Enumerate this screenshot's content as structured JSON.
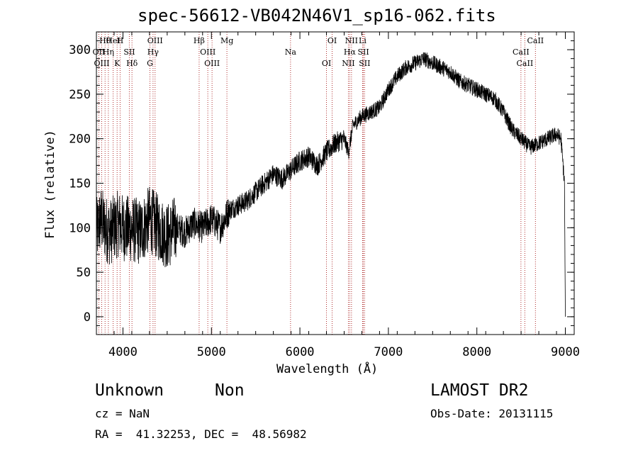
{
  "chart_data": {
    "type": "line",
    "title": "spec-56612-VB042N46V1_sp16-062.fits",
    "xlabel": "Wavelength (Å)",
    "ylabel": "Flux (relative)",
    "xlim": [
      3700,
      9100
    ],
    "ylim": [
      -20,
      320
    ],
    "x_ticks": [
      4000,
      5000,
      6000,
      7000,
      8000,
      9000
    ],
    "y_ticks": [
      0,
      50,
      100,
      150,
      200,
      250,
      300
    ],
    "grid": false,
    "series": [
      {
        "x": [
          3700,
          3750,
          3800,
          3850,
          3900,
          3950,
          4000,
          4100,
          4200,
          4300,
          4400,
          4500,
          4600,
          4700,
          4800,
          4900,
          5000,
          5100,
          5200,
          5300,
          5400,
          5500,
          5600,
          5700,
          5800,
          5900,
          6000,
          6100,
          6200,
          6300,
          6400,
          6500,
          6550,
          6600,
          6700,
          6800,
          6900,
          7000,
          7100,
          7200,
          7300,
          7400,
          7500,
          7600,
          7700,
          7800,
          7900,
          8000,
          8100,
          8200,
          8300,
          8400,
          8500,
          8600,
          8700,
          8800,
          8900,
          8950,
          8990,
          9000
        ],
        "y": [
          95,
          110,
          100,
          95,
          100,
          105,
          100,
          98,
          95,
          110,
          100,
          90,
          100,
          95,
          105,
          100,
          110,
          100,
          120,
          125,
          130,
          140,
          150,
          160,
          155,
          165,
          175,
          180,
          170,
          185,
          195,
          200,
          185,
          215,
          225,
          230,
          235,
          255,
          270,
          280,
          285,
          290,
          285,
          280,
          275,
          265,
          260,
          255,
          250,
          245,
          230,
          210,
          200,
          190,
          195,
          200,
          205,
          200,
          150,
          0
        ]
      }
    ],
    "lines": [
      {
        "label": "Hθ",
        "x": 3798
      },
      {
        "label": "OII",
        "x": 3727
      },
      {
        "label": "OIII",
        "x": 3760
      },
      {
        "label": "HeI",
        "x": 3889
      },
      {
        "label": "Hη",
        "x": 3835
      },
      {
        "label": "K",
        "x": 3934
      },
      {
        "label": "H",
        "x": 3968
      },
      {
        "label": "SII",
        "x": 4072
      },
      {
        "label": "Hδ",
        "x": 4102
      },
      {
        "label": "OIII",
        "x": 4363
      },
      {
        "label": "Hγ",
        "x": 4340
      },
      {
        "label": "G",
        "x": 4305
      },
      {
        "label": "Hβ",
        "x": 4861
      },
      {
        "label": "OIII",
        "x": 4959
      },
      {
        "label": "OIII",
        "x": 5007
      },
      {
        "label": "Mg",
        "x": 5175
      },
      {
        "label": "Na",
        "x": 5894
      },
      {
        "label": "OI",
        "x": 6300
      },
      {
        "label": "OI",
        "x": 6364
      },
      {
        "label": "Hα",
        "x": 6563
      },
      {
        "label": "NII",
        "x": 6548
      },
      {
        "label": "NII",
        "x": 6583
      },
      {
        "label": "SII",
        "x": 6717
      },
      {
        "label": "SII",
        "x": 6731
      },
      {
        "label": "Li",
        "x": 6708
      },
      {
        "label": "CaII",
        "x": 8498
      },
      {
        "label": "CaII",
        "x": 8542
      },
      {
        "label": "CaII",
        "x": 8662
      }
    ]
  },
  "info": {
    "class": "Unknown",
    "subclass": "Non",
    "survey": "LAMOST DR2",
    "cz": "cz = NaN",
    "obs_date": "Obs-Date: 20131115",
    "radec": "RA =  41.32253, DEC =  48.56982"
  }
}
